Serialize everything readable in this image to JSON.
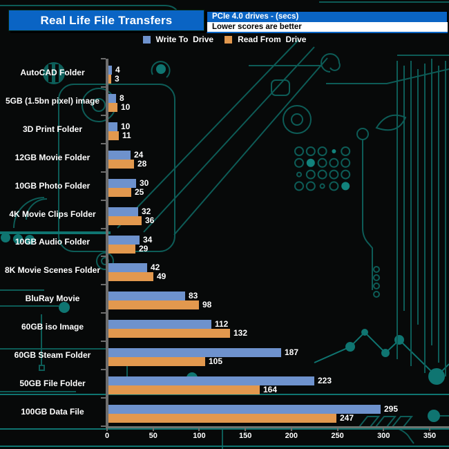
{
  "header": {
    "title": "Real Life File Transfers",
    "subtitle_line1": "PCIe 4.0 drives - (secs)",
    "subtitle_line2": "Lower scores are better"
  },
  "legend": [
    {
      "label": "Write To  Drive",
      "color": "#6e92cd"
    },
    {
      "label": "Read From  Drive",
      "color": "#e2984e"
    }
  ],
  "colors": {
    "header_blue": "#0a64c4",
    "bar_blue": "#6e92cd",
    "bar_orange": "#e2984e",
    "axis_gray": "#6e6e6e",
    "circuit_teal": "#0d5c57",
    "circuit_bright": "#0f7571",
    "background": "#070909",
    "text": "#ffffff"
  },
  "chart_data": {
    "type": "bar",
    "orientation": "horizontal",
    "title": "Real Life File Transfers",
    "units": "secs",
    "note": "Lower scores are better",
    "categories": [
      "AutoCAD Folder",
      "5GB (1.5bn pixel) image",
      "3D Print Folder",
      "12GB Movie Folder",
      "10GB Photo Folder",
      "4K Movie Clips Folder",
      "10GB Audio Folder",
      "8K Movie Scenes Folder",
      "BluRay Movie",
      "60GB iso Image",
      "60GB Steam Folder",
      "50GB File Folder",
      "100GB Data File"
    ],
    "series": [
      {
        "name": "Write To Drive",
        "color": "#6e92cd",
        "values": [
          4,
          8,
          10,
          24,
          30,
          32,
          34,
          42,
          83,
          112,
          187,
          223,
          295
        ]
      },
      {
        "name": "Read From Drive",
        "color": "#e2984e",
        "values": [
          3,
          10,
          11,
          28,
          25,
          36,
          29,
          49,
          98,
          132,
          105,
          164,
          247
        ]
      }
    ],
    "xlim": [
      0,
      350
    ],
    "xticks": [
      0,
      50,
      100,
      150,
      200,
      250,
      300,
      350
    ],
    "value_labels": true,
    "grid": false,
    "legend_position": "top"
  }
}
